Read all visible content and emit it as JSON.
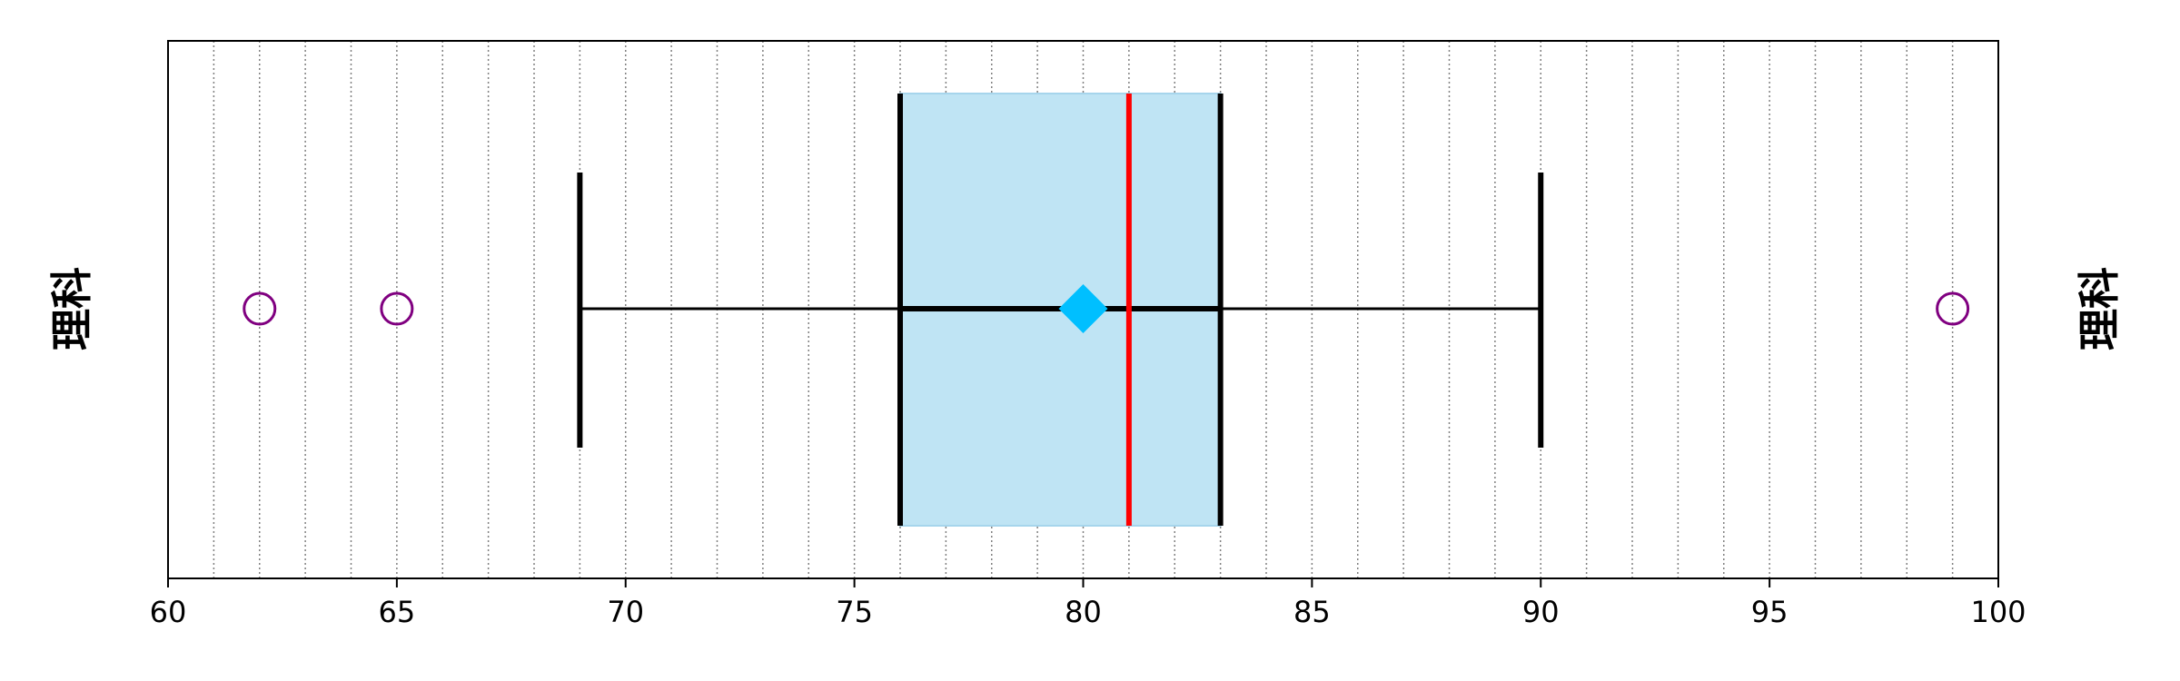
{
  "chart_data": {
    "type": "box",
    "orientation": "horizontal",
    "category_label": "理科",
    "category_label_right": "理科",
    "xlim": [
      60,
      100
    ],
    "x_ticks": [
      60,
      65,
      70,
      75,
      80,
      85,
      90,
      95,
      100
    ],
    "x_tick_labels": [
      "60",
      "65",
      "70",
      "75",
      "80",
      "85",
      "90",
      "95",
      "100"
    ],
    "minor_grid_step": 1,
    "grid": "vertical dotted",
    "box": {
      "whisker_low": 69,
      "q1": 76,
      "median": 81,
      "mean": 80,
      "q3": 83,
      "whisker_high": 90
    },
    "outliers": [
      62,
      65,
      99
    ],
    "colors": {
      "box_fill": "#BFE4F4",
      "box_outline": "#A6D5EC",
      "median": "#FF0000",
      "mean_marker": "#00BFFF",
      "outlier": "#800080",
      "whisker": "#000000",
      "grid": "#808080"
    }
  }
}
